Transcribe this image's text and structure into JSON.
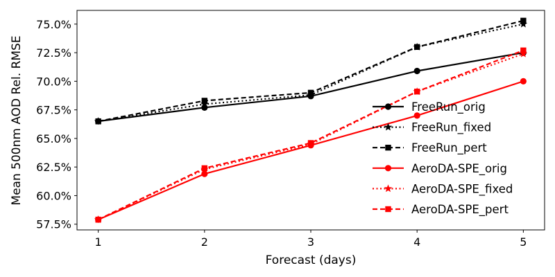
{
  "chart_data": {
    "type": "line",
    "title": "",
    "xlabel": "Forecast (days)",
    "ylabel": "Mean 500nm AOD Rel. RMSE",
    "x": [
      1,
      2,
      3,
      4,
      5
    ],
    "xlim": [
      0.8,
      5.2
    ],
    "ylim": [
      57.0,
      76.2
    ],
    "xticks": [
      1,
      2,
      3,
      4,
      5
    ],
    "xtick_labels": [
      "1",
      "2",
      "3",
      "4",
      "5"
    ],
    "yticks": [
      57.5,
      60.0,
      62.5,
      65.0,
      67.5,
      70.0,
      72.5,
      75.0
    ],
    "ytick_labels": [
      "57.5%",
      "60.0%",
      "62.5%",
      "65.0%",
      "67.5%",
      "70.0%",
      "72.5%",
      "75.0%"
    ],
    "grid": false,
    "legend_position": "right",
    "series": [
      {
        "name": "FreeRun_orig",
        "color": "#000000",
        "line_style": "solid",
        "marker": "circle",
        "values": [
          66.5,
          67.7,
          68.7,
          70.9,
          72.5
        ]
      },
      {
        "name": "FreeRun_fixed",
        "color": "#000000",
        "line_style": "dotted",
        "marker": "star",
        "values": [
          66.5,
          68.0,
          68.8,
          73.0,
          75.0
        ]
      },
      {
        "name": "FreeRun_pert",
        "color": "#000000",
        "line_style": "dashed",
        "marker": "square",
        "values": [
          66.5,
          68.3,
          69.0,
          73.0,
          75.3
        ]
      },
      {
        "name": "AeroDA-SPE_orig",
        "color": "#ff0000",
        "line_style": "solid",
        "marker": "circle",
        "values": [
          57.9,
          61.9,
          64.4,
          67.0,
          70.0
        ]
      },
      {
        "name": "AeroDA-SPE_fixed",
        "color": "#ff0000",
        "line_style": "dotted",
        "marker": "star",
        "values": [
          57.9,
          62.3,
          64.5,
          69.1,
          72.4
        ]
      },
      {
        "name": "AeroDA-SPE_pert",
        "color": "#ff0000",
        "line_style": "dashed",
        "marker": "square",
        "values": [
          57.9,
          62.4,
          64.6,
          69.1,
          72.7
        ]
      }
    ]
  }
}
